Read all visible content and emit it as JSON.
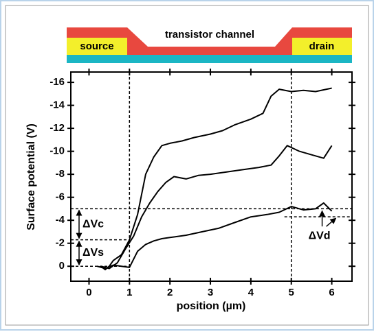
{
  "chart_data": {
    "type": "line",
    "schematic": {
      "channel": "transistor channel",
      "source": "source",
      "drain": "drain"
    },
    "xlabel": "position (µm)",
    "ylabel": "Surface potential (V)",
    "xlim": [
      -0.45,
      6.5
    ],
    "xticks": [
      0,
      1,
      2,
      3,
      4,
      5,
      6
    ],
    "ylim": [
      1.3,
      -16.9
    ],
    "yticks": [
      0,
      -2,
      -4,
      -6,
      -8,
      -10,
      -12,
      -14,
      -16
    ],
    "color": "#000000",
    "series": [
      {
        "x": [
          0.3,
          0.4,
          0.5,
          0.6,
          0.8,
          1.0,
          1.2,
          1.4,
          1.6,
          1.8,
          2.0,
          2.3,
          2.6,
          3.0,
          3.3,
          3.6,
          4.0,
          4.3,
          4.5,
          4.7,
          5.0,
          5.3,
          5.6,
          6.0
        ],
        "values": [
          0,
          0.3,
          0,
          -0.5,
          -1,
          -2.3,
          -4.5,
          -8,
          -9.5,
          -10.5,
          -10.7,
          -10.9,
          -11.2,
          -11.5,
          -11.8,
          -12.3,
          -12.8,
          -13.3,
          -14.8,
          -15.4,
          -15.2,
          -15.3,
          -15.2,
          -15.5
        ]
      },
      {
        "x": [
          0.3,
          0.5,
          0.7,
          0.9,
          1.1,
          1.3,
          1.5,
          1.7,
          1.9,
          2.1,
          2.4,
          2.7,
          3.0,
          3.4,
          3.8,
          4.2,
          4.5,
          4.7,
          4.9,
          5.2,
          5.5,
          5.8,
          6.0
        ],
        "values": [
          0,
          0.2,
          -0.3,
          -1.5,
          -2.6,
          -4.3,
          -5.5,
          -6.5,
          -7.3,
          -7.8,
          -7.6,
          -7.9,
          -8,
          -8.2,
          -8.4,
          -8.6,
          -8.8,
          -9.6,
          -10.5,
          -10,
          -9.7,
          -9.4,
          -10.5
        ]
      },
      {
        "x": [
          0.2,
          0.4,
          0.6,
          0.8,
          1.0,
          1.2,
          1.4,
          1.6,
          1.8,
          2.0,
          2.4,
          2.8,
          3.2,
          3.6,
          4.0,
          4.4,
          4.7,
          5.0,
          5.3,
          5.6,
          5.8,
          6.0
        ],
        "values": [
          0,
          0.2,
          -0.1,
          0,
          0.1,
          -1.3,
          -1.9,
          -2.2,
          -2.4,
          -2.5,
          -2.7,
          -3,
          -3.3,
          -3.8,
          -4.3,
          -4.5,
          -4.7,
          -5.2,
          -4.9,
          -5,
          -5.5,
          -4.8
        ]
      }
    ],
    "vlines": [
      1,
      5
    ],
    "hlines": [
      0,
      -2.3,
      -5,
      -4.3
    ],
    "annotations": [
      "ΔVc",
      "ΔVs",
      "ΔVd"
    ]
  }
}
